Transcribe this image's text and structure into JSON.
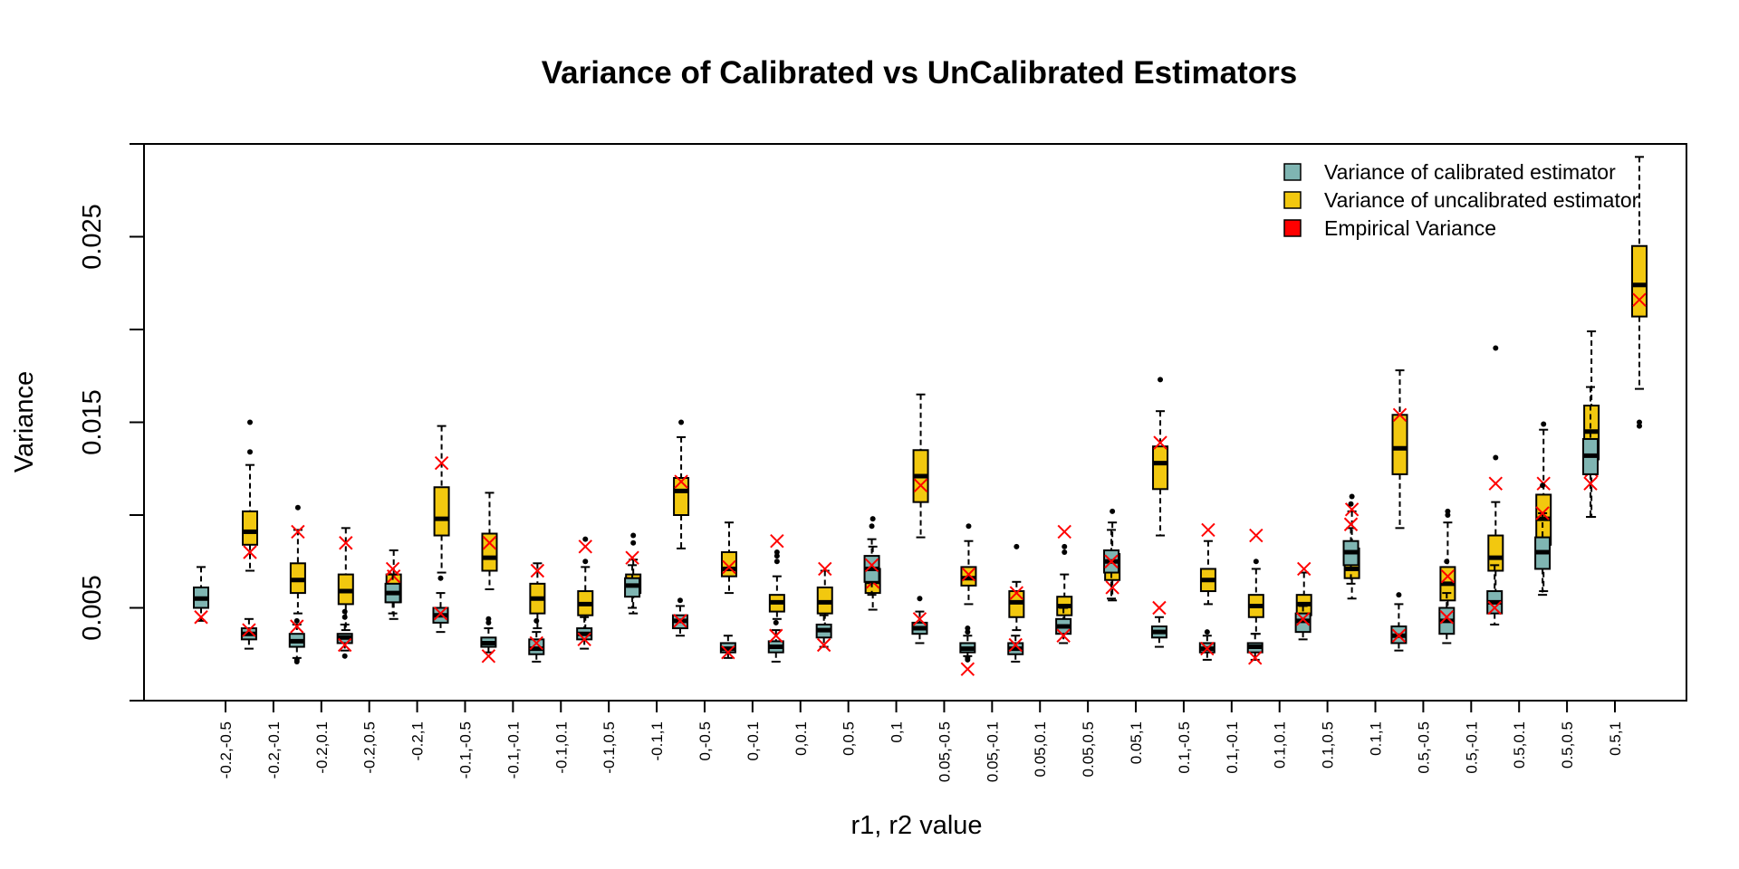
{
  "chart_data": {
    "type": "boxplot",
    "title": "Variance of Calibrated vs UnCalibrated Estimators",
    "xlabel": "r1, r2 value",
    "ylabel": "Variance",
    "ylim": [
      0,
      0.03
    ],
    "yticks": [
      0.005,
      0.015,
      0.025
    ],
    "ytick_labels": [
      "0.005",
      "0.015",
      "0.025"
    ],
    "grid": false,
    "legend_position": "top-right",
    "legend": [
      {
        "label": "Variance of calibrated estimator",
        "color": "#7fb5b2"
      },
      {
        "label": "Variance of uncalibrated estimator",
        "color": "#f2c80f"
      },
      {
        "label": "Empirical Variance",
        "color": "#ff0000"
      }
    ],
    "colors": {
      "calibrated": "#7fb5b2",
      "uncalibrated": "#f2c80f",
      "empirical": "#ff0000"
    },
    "categories": [
      "-0.2,-0.5",
      "-0.2,-0.1",
      "-0.2,0.1",
      "-0.2,0.5",
      "-0.2,1",
      "-0.1,-0.5",
      "-0.1,-0.1",
      "-0.1,0.1",
      "-0.1,0.5",
      "-0.1,1",
      "0,-0.5",
      "0,-0.1",
      "0,0.1",
      "0,0.5",
      "0,1",
      "0.05,-0.5",
      "0.05,-0.1",
      "0.05,0.1",
      "0.05,0.5",
      "0.05,1",
      "0.1,-0.5",
      "0.1,-0.1",
      "0.1,0.1",
      "0.1,0.5",
      "0.1,1",
      "0.5,-0.5",
      "0.5,-0.1",
      "0.5,0.1",
      "0.5,0.5",
      "0.5,1"
    ],
    "series": [
      {
        "name": "Variance of calibrated estimator",
        "boxes": [
          {
            "min": 0.0043,
            "q1": 0.005,
            "median": 0.0055,
            "q3": 0.0061,
            "max": 0.0072,
            "outliers": []
          },
          {
            "min": 0.0028,
            "q1": 0.0033,
            "median": 0.0036,
            "q3": 0.0039,
            "max": 0.0044,
            "outliers": []
          },
          {
            "min": 0.0023,
            "q1": 0.0029,
            "median": 0.0032,
            "q3": 0.0036,
            "max": 0.0041,
            "outliers": [
              0.0021,
              0.0022,
              0.0043
            ]
          },
          {
            "min": 0.0027,
            "q1": 0.0031,
            "median": 0.0034,
            "q3": 0.0036,
            "max": 0.0041,
            "outliers": [
              0.0024,
              0.0045,
              0.0048
            ]
          },
          {
            "min": 0.0047,
            "q1": 0.0053,
            "median": 0.0058,
            "q3": 0.0063,
            "max": 0.0068,
            "outliers": []
          },
          {
            "min": 0.0037,
            "q1": 0.0042,
            "median": 0.0046,
            "q3": 0.005,
            "max": 0.0058,
            "outliers": [
              0.0066
            ]
          },
          {
            "min": 0.0026,
            "q1": 0.0029,
            "median": 0.0031,
            "q3": 0.0034,
            "max": 0.0039,
            "outliers": [
              0.0042,
              0.0044
            ]
          },
          {
            "min": 0.0021,
            "q1": 0.0025,
            "median": 0.0028,
            "q3": 0.0033,
            "max": 0.0037,
            "outliers": [
              0.0043
            ]
          },
          {
            "min": 0.0028,
            "q1": 0.0033,
            "median": 0.0036,
            "q3": 0.0039,
            "max": 0.0045,
            "outliers": []
          },
          {
            "min": 0.005,
            "q1": 0.0056,
            "median": 0.0062,
            "q3": 0.0066,
            "max": 0.0073,
            "outliers": []
          },
          {
            "min": 0.0035,
            "q1": 0.0039,
            "median": 0.0043,
            "q3": 0.0046,
            "max": 0.0051,
            "outliers": [
              0.0054
            ]
          },
          {
            "min": 0.0023,
            "q1": 0.0026,
            "median": 0.0028,
            "q3": 0.0031,
            "max": 0.0035,
            "outliers": []
          },
          {
            "min": 0.0021,
            "q1": 0.0026,
            "median": 0.0029,
            "q3": 0.0032,
            "max": 0.0038,
            "outliers": [
              0.0042
            ]
          },
          {
            "min": 0.0029,
            "q1": 0.0034,
            "median": 0.0038,
            "q3": 0.0041,
            "max": 0.0046,
            "outliers": []
          },
          {
            "min": 0.0057,
            "q1": 0.0064,
            "median": 0.0071,
            "q3": 0.0078,
            "max": 0.0087,
            "outliers": [
              0.0094
            ]
          },
          {
            "min": 0.0031,
            "q1": 0.0036,
            "median": 0.0039,
            "q3": 0.0042,
            "max": 0.0048,
            "outliers": [
              0.0055
            ]
          },
          {
            "min": 0.0024,
            "q1": 0.0026,
            "median": 0.0028,
            "q3": 0.0031,
            "max": 0.0035,
            "outliers": [
              0.0022,
              0.0023,
              0.0037,
              0.0039
            ]
          },
          {
            "min": 0.0021,
            "q1": 0.0025,
            "median": 0.0028,
            "q3": 0.0031,
            "max": 0.0035,
            "outliers": []
          },
          {
            "min": 0.0031,
            "q1": 0.0036,
            "median": 0.004,
            "q3": 0.0044,
            "max": 0.005,
            "outliers": []
          },
          {
            "min": 0.0055,
            "q1": 0.0069,
            "median": 0.0075,
            "q3": 0.0081,
            "max": 0.0092,
            "outliers": []
          },
          {
            "min": 0.0029,
            "q1": 0.0034,
            "median": 0.0037,
            "q3": 0.004,
            "max": 0.0045,
            "outliers": []
          },
          {
            "min": 0.0022,
            "q1": 0.0026,
            "median": 0.0028,
            "q3": 0.0031,
            "max": 0.0035,
            "outliers": [
              0.0037
            ]
          },
          {
            "min": 0.0022,
            "q1": 0.0026,
            "median": 0.0029,
            "q3": 0.0031,
            "max": 0.0036,
            "outliers": []
          },
          {
            "min": 0.0033,
            "q1": 0.0037,
            "median": 0.0043,
            "q3": 0.0047,
            "max": 0.0051,
            "outliers": []
          },
          {
            "min": 0.0063,
            "q1": 0.0073,
            "median": 0.008,
            "q3": 0.0086,
            "max": 0.0093,
            "outliers": [
              0.0106
            ]
          },
          {
            "min": 0.0027,
            "q1": 0.0031,
            "median": 0.0035,
            "q3": 0.004,
            "max": 0.0052,
            "outliers": [
              0.0057
            ]
          },
          {
            "min": 0.0031,
            "q1": 0.0036,
            "median": 0.0043,
            "q3": 0.005,
            "max": 0.0058,
            "outliers": [
              0.0075
            ]
          },
          {
            "min": 0.0041,
            "q1": 0.0047,
            "median": 0.0053,
            "q3": 0.0059,
            "max": 0.0073,
            "outliers": []
          },
          {
            "min": 0.0057,
            "q1": 0.0071,
            "median": 0.008,
            "q3": 0.0088,
            "max": 0.0101,
            "outliers": [
              0.0116
            ]
          },
          {
            "min": 0.0099,
            "q1": 0.0122,
            "median": 0.0132,
            "q3": 0.0141,
            "max": 0.0169,
            "outliers": []
          }
        ]
      },
      {
        "name": "Variance of uncalibrated estimator",
        "boxes": [
          {
            "min": 0.007,
            "q1": 0.0084,
            "median": 0.0091,
            "q3": 0.0102,
            "max": 0.0127,
            "outliers": [
              0.0134,
              0.015
            ]
          },
          {
            "min": 0.0047,
            "q1": 0.0058,
            "median": 0.0065,
            "q3": 0.0074,
            "max": 0.0092,
            "outliers": [
              0.0104
            ]
          },
          {
            "min": 0.0038,
            "q1": 0.0052,
            "median": 0.0059,
            "q3": 0.0068,
            "max": 0.0093,
            "outliers": []
          },
          {
            "min": 0.0044,
            "q1": 0.0053,
            "median": 0.0059,
            "q3": 0.0068,
            "max": 0.0081,
            "outliers": []
          },
          {
            "min": 0.0069,
            "q1": 0.0089,
            "median": 0.0098,
            "q3": 0.0115,
            "max": 0.0148,
            "outliers": []
          },
          {
            "min": 0.006,
            "q1": 0.007,
            "median": 0.0077,
            "q3": 0.009,
            "max": 0.0112,
            "outliers": []
          },
          {
            "min": 0.0039,
            "q1": 0.0047,
            "median": 0.0055,
            "q3": 0.0063,
            "max": 0.0074,
            "outliers": []
          },
          {
            "min": 0.0038,
            "q1": 0.0046,
            "median": 0.0052,
            "q3": 0.0059,
            "max": 0.0072,
            "outliers": [
              0.0075,
              0.0087
            ]
          },
          {
            "min": 0.0047,
            "q1": 0.0058,
            "median": 0.0064,
            "q3": 0.0068,
            "max": 0.0076,
            "outliers": [
              0.0085,
              0.0089
            ]
          },
          {
            "min": 0.0082,
            "q1": 0.01,
            "median": 0.0113,
            "q3": 0.012,
            "max": 0.0142,
            "outliers": [
              0.015
            ]
          },
          {
            "min": 0.0058,
            "q1": 0.0067,
            "median": 0.0071,
            "q3": 0.008,
            "max": 0.0096,
            "outliers": []
          },
          {
            "min": 0.0044,
            "q1": 0.0048,
            "median": 0.0053,
            "q3": 0.0057,
            "max": 0.0067,
            "outliers": [
              0.0075,
              0.0078,
              0.008
            ]
          },
          {
            "min": 0.0037,
            "q1": 0.0047,
            "median": 0.0053,
            "q3": 0.0061,
            "max": 0.007,
            "outliers": []
          },
          {
            "min": 0.0049,
            "q1": 0.0058,
            "median": 0.0064,
            "q3": 0.0071,
            "max": 0.0083,
            "outliers": [
              0.0098
            ]
          },
          {
            "min": 0.0088,
            "q1": 0.0107,
            "median": 0.0121,
            "q3": 0.0135,
            "max": 0.0165,
            "outliers": []
          },
          {
            "min": 0.0052,
            "q1": 0.0062,
            "median": 0.0066,
            "q3": 0.0072,
            "max": 0.0086,
            "outliers": [
              0.0094
            ]
          },
          {
            "min": 0.0038,
            "q1": 0.0045,
            "median": 0.0053,
            "q3": 0.0059,
            "max": 0.0064,
            "outliers": [
              0.0083
            ]
          },
          {
            "min": 0.0038,
            "q1": 0.0046,
            "median": 0.0051,
            "q3": 0.0056,
            "max": 0.0068,
            "outliers": [
              0.008,
              0.0083
            ]
          },
          {
            "min": 0.0054,
            "q1": 0.0065,
            "median": 0.0072,
            "q3": 0.0079,
            "max": 0.0096,
            "outliers": [
              0.0102
            ]
          },
          {
            "min": 0.0089,
            "q1": 0.0114,
            "median": 0.0128,
            "q3": 0.0137,
            "max": 0.0156,
            "outliers": [
              0.0173
            ]
          },
          {
            "min": 0.0052,
            "q1": 0.0059,
            "median": 0.0065,
            "q3": 0.0071,
            "max": 0.0086,
            "outliers": []
          },
          {
            "min": 0.0036,
            "q1": 0.0045,
            "median": 0.0051,
            "q3": 0.0057,
            "max": 0.0071,
            "outliers": [
              0.0075
            ]
          },
          {
            "min": 0.0039,
            "q1": 0.0046,
            "median": 0.0052,
            "q3": 0.0057,
            "max": 0.0069,
            "outliers": []
          },
          {
            "min": 0.0055,
            "q1": 0.0066,
            "median": 0.0071,
            "q3": 0.0082,
            "max": 0.0102,
            "outliers": [
              0.011
            ]
          },
          {
            "min": 0.0093,
            "q1": 0.0122,
            "median": 0.0136,
            "q3": 0.0154,
            "max": 0.0178,
            "outliers": []
          },
          {
            "min": 0.0043,
            "q1": 0.0054,
            "median": 0.0063,
            "q3": 0.0072,
            "max": 0.0096,
            "outliers": [
              0.01,
              0.0102
            ]
          },
          {
            "min": 0.0048,
            "q1": 0.007,
            "median": 0.0077,
            "q3": 0.0089,
            "max": 0.0107,
            "outliers": [
              0.0131,
              0.019
            ]
          },
          {
            "min": 0.0059,
            "q1": 0.0084,
            "median": 0.0098,
            "q3": 0.0111,
            "max": 0.0146,
            "outliers": [
              0.0149
            ]
          },
          {
            "min": 0.0099,
            "q1": 0.013,
            "median": 0.0145,
            "q3": 0.0159,
            "max": 0.0199,
            "outliers": []
          },
          {
            "min": 0.0168,
            "q1": 0.0207,
            "median": 0.0224,
            "q3": 0.0245,
            "max": 0.0293,
            "outliers": [
              0.0148,
              0.015
            ]
          }
        ]
      },
      {
        "name": "Empirical Variance",
        "values": [
          [
            0.0045,
            0.008
          ],
          [
            0.0038,
            0.0091
          ],
          [
            0.004,
            0.0085
          ],
          [
            0.003,
            0.0067
          ],
          [
            0.0071,
            0.0128
          ],
          [
            0.0047,
            0.0085
          ],
          [
            0.0024,
            0.007
          ],
          [
            0.0031,
            0.0083
          ],
          [
            0.0033,
            0.0063
          ],
          [
            0.0077,
            0.0118
          ],
          [
            0.0043,
            0.0072
          ],
          [
            0.0026,
            0.0086
          ],
          [
            0.0035,
            0.0071
          ],
          [
            0.003,
            0.0064
          ],
          [
            0.0073,
            0.0116
          ],
          [
            0.0044,
            0.0068
          ],
          [
            0.0017,
            0.0058
          ],
          [
            0.003,
            0.0091
          ],
          [
            0.0035,
            0.0061
          ],
          [
            0.0075,
            0.0139
          ],
          [
            0.005,
            0.0092
          ],
          [
            0.0028,
            0.0089
          ],
          [
            0.0023,
            0.0071
          ],
          [
            0.0044,
            0.0103
          ],
          [
            0.0095,
            0.0154
          ],
          [
            0.0035,
            0.0067
          ],
          [
            0.0045,
            0.0117
          ],
          [
            0.005,
            0.0117
          ],
          [
            0.0101,
            0.0124
          ],
          [
            0.0117,
            0.0216
          ]
        ]
      }
    ]
  }
}
